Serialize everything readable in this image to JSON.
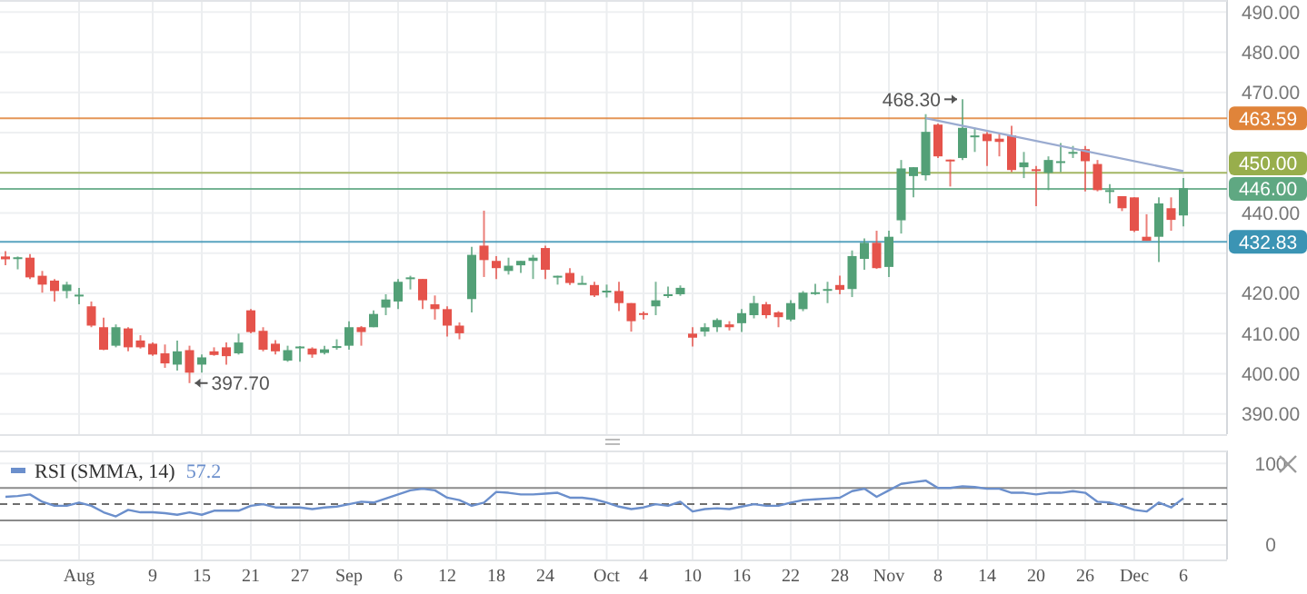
{
  "chart_data": [
    {
      "type": "candlestick",
      "categories": [
        null,
        null,
        null,
        null,
        null,
        null,
        "Aug",
        null,
        null,
        null,
        null,
        null,
        "9",
        null,
        null,
        null,
        "15",
        null,
        null,
        null,
        "21",
        null,
        null,
        null,
        "27",
        null,
        null,
        null,
        "Sep",
        null,
        null,
        null,
        "6",
        null,
        null,
        null,
        "12",
        null,
        null,
        null,
        "18",
        null,
        null,
        null,
        "24",
        null,
        null,
        null,
        null,
        "Oct",
        null,
        null,
        "4",
        null,
        null,
        null,
        "10",
        null,
        null,
        null,
        "16",
        null,
        null,
        null,
        "22",
        null,
        null,
        null,
        "28",
        null,
        null,
        null,
        "Nov",
        null,
        null,
        null,
        "8",
        null,
        null,
        null,
        "14",
        null,
        null,
        null,
        "20",
        null,
        null,
        null,
        "26",
        null,
        null,
        null,
        "Dec",
        null,
        null,
        null,
        "6"
      ],
      "ohlc": [
        [
          429.2,
          430.5,
          427,
          428.5
        ],
        [
          428.6,
          429.2,
          426,
          429
        ],
        [
          428.9,
          429.8,
          423.6,
          424
        ],
        [
          424.4,
          425.6,
          420.2,
          422.2
        ],
        [
          423.2,
          423.6,
          418,
          420.6
        ],
        [
          420.6,
          422.9,
          418.8,
          422.2
        ],
        [
          419.4,
          421.4,
          417.3,
          419.7
        ],
        [
          416.8,
          418,
          411.6,
          412
        ],
        [
          411.6,
          414,
          405.9,
          406
        ],
        [
          407,
          412.3,
          406.6,
          411.6
        ],
        [
          411.3,
          411.6,
          405.6,
          406.6
        ],
        [
          408.3,
          409.6,
          406.3,
          406.6
        ],
        [
          407.5,
          407.8,
          404.5,
          404.8
        ],
        [
          405.1,
          407.3,
          401.5,
          402.6
        ],
        [
          402.3,
          408.3,
          400.8,
          405.6
        ],
        [
          405.9,
          407,
          397.7,
          400.3
        ],
        [
          402.3,
          404.8,
          400.3,
          404.1
        ],
        [
          405.6,
          406.6,
          404.5,
          404.7
        ],
        [
          406.6,
          407.8,
          402.3,
          404.4
        ],
        [
          405.1,
          410,
          404.8,
          407.8
        ],
        [
          415.8,
          416.1,
          410.1,
          410.4
        ],
        [
          410.7,
          411.6,
          405.6,
          406
        ],
        [
          407.5,
          408.4,
          404.8,
          405.6
        ],
        [
          403.3,
          407,
          403,
          405.9
        ],
        [
          406.6,
          406.9,
          403,
          406.8
        ],
        [
          406.3,
          406.6,
          404,
          404.8
        ],
        [
          405.2,
          407,
          404.8,
          406.1
        ],
        [
          406.8,
          408.6,
          406,
          406.9
        ],
        [
          407,
          413.1,
          406,
          411.6
        ],
        [
          411.6,
          411.9,
          407,
          410.4
        ],
        [
          411.6,
          415.8,
          411.6,
          414.9
        ],
        [
          416.5,
          419.8,
          414.6,
          418.5
        ],
        [
          418,
          423.6,
          416.1,
          422.9
        ],
        [
          423.8,
          424.4,
          421,
          424
        ],
        [
          423.6,
          423.6,
          416.1,
          418.3
        ],
        [
          417.3,
          419.5,
          413.5,
          416.1
        ],
        [
          416.1,
          416.8,
          409.3,
          412
        ],
        [
          412,
          412.8,
          408.6,
          410.1
        ],
        [
          418.6,
          431.6,
          415.3,
          429.6
        ],
        [
          431.9,
          440.6,
          424.1,
          428.3
        ],
        [
          428.1,
          429.3,
          423.6,
          426.3
        ],
        [
          425.6,
          428.9,
          424.7,
          426.9
        ],
        [
          427,
          428.1,
          425.1,
          428.1
        ],
        [
          428.1,
          429.6,
          423.6,
          428.9
        ],
        [
          431.3,
          431.9,
          423.6,
          425.9
        ],
        [
          424.3,
          424.4,
          422.2,
          424.4
        ],
        [
          425.1,
          426.3,
          422.1,
          422.6
        ],
        [
          422.5,
          424.4,
          422.4,
          422.6
        ],
        [
          422.1,
          422.9,
          419.1,
          419.5
        ],
        [
          420.5,
          422.2,
          419,
          420.7
        ],
        [
          420.6,
          422.9,
          415.6,
          417.6
        ],
        [
          417.6,
          417.6,
          410.5,
          413.1
        ],
        [
          415.1,
          415.5,
          413.5,
          414.9
        ],
        [
          416.8,
          422.9,
          414.6,
          418.3
        ],
        [
          419.6,
          421.7,
          418.9,
          419.8
        ],
        [
          419.8,
          422,
          419.4,
          421.4
        ],
        [
          410,
          411.6,
          406.8,
          409
        ],
        [
          410.5,
          412.6,
          409.3,
          411.6
        ],
        [
          411.6,
          413.8,
          410.4,
          413.4
        ],
        [
          412.3,
          413.1,
          410.8,
          411.6
        ],
        [
          412.6,
          416.1,
          410.4,
          415.1
        ],
        [
          414.6,
          419.4,
          413.8,
          417.6
        ],
        [
          417.3,
          417.9,
          413.8,
          414.6
        ],
        [
          415.3,
          415.6,
          411.6,
          414.1
        ],
        [
          413.5,
          418.3,
          413.1,
          417.6
        ],
        [
          416.1,
          420.6,
          415.6,
          420.2
        ],
        [
          420.2,
          422.4,
          419.6,
          420.3
        ],
        [
          421,
          422.9,
          417.6,
          421.1
        ],
        [
          422.1,
          424.4,
          419.8,
          420.9
        ],
        [
          421.1,
          430.7,
          419.1,
          429.3
        ],
        [
          428.6,
          433.7,
          425.9,
          432.6
        ],
        [
          432.6,
          435.6,
          426.1,
          426.3
        ],
        [
          426.6,
          435.6,
          424.1,
          434.1
        ],
        [
          438.2,
          453.2,
          434.9,
          451.1
        ],
        [
          449.2,
          451.4,
          443.9,
          451.4
        ],
        [
          449.4,
          464.6,
          448.1,
          460.2
        ],
        [
          462,
          462.3,
          453.7,
          454.1
        ],
        [
          453.3,
          453.3,
          446.6,
          453.2
        ],
        [
          453.7,
          468.3,
          453.2,
          461.2
        ],
        [
          459.1,
          461.2,
          455.2,
          459.3
        ],
        [
          459.7,
          460.2,
          451.7,
          457.9
        ],
        [
          458.5,
          459.7,
          454.1,
          457.7
        ],
        [
          459.3,
          461.7,
          450.2,
          450.7
        ],
        [
          451.4,
          455.2,
          448.7,
          452.6
        ],
        [
          450.9,
          451.7,
          441.7,
          450.8
        ],
        [
          450,
          454.1,
          445.7,
          453.2
        ],
        [
          452.8,
          457.4,
          450.2,
          452.9
        ],
        [
          455.1,
          456.7,
          453.7,
          455.2
        ],
        [
          455.9,
          456.7,
          445.4,
          452.9
        ],
        [
          452.2,
          453.2,
          445.4,
          445.7
        ],
        [
          445.6,
          447.2,
          442.4,
          445.7
        ],
        [
          444.2,
          444.2,
          440.5,
          441.2
        ],
        [
          443.9,
          443.9,
          435.3,
          435.6
        ],
        [
          434.1,
          439.7,
          433.1,
          433.1
        ],
        [
          434.1,
          443.9,
          427.8,
          442.4
        ],
        [
          441.2,
          443.9,
          435.6,
          438.3
        ],
        [
          439.4,
          448.7,
          436.7,
          446.2
        ]
      ],
      "series": [
        {
          "type": "line",
          "color": "#9aabd0",
          "values": [
            null,
            null,
            null,
            null,
            null,
            null,
            null,
            null,
            null,
            null,
            null,
            null,
            null,
            null,
            null,
            null,
            null,
            null,
            null,
            null,
            null,
            null,
            null,
            null,
            null,
            null,
            null,
            null,
            null,
            null,
            null,
            null,
            null,
            null,
            null,
            null,
            null,
            null,
            null,
            null,
            null,
            null,
            null,
            null,
            null,
            null,
            null,
            null,
            null,
            null,
            null,
            null,
            null,
            null,
            null,
            null,
            null,
            null,
            null,
            null,
            null,
            null,
            null,
            null,
            null,
            null,
            null,
            null,
            null,
            null,
            null,
            null,
            null,
            null,
            null,
            463.6,
            null,
            null,
            null,
            null,
            null,
            null,
            null,
            null,
            null,
            null,
            null,
            null,
            null,
            null,
            null,
            null,
            null,
            null,
            null,
            null,
            450.4
          ]
        }
      ],
      "ylim": [
        385,
        493
      ],
      "yticks": [
        {
          "value": 390,
          "label": "390.00"
        },
        {
          "value": 400,
          "label": "400.00"
        },
        {
          "value": 410,
          "label": "410.00"
        },
        {
          "value": 420,
          "label": "420.00"
        },
        {
          "value": 430,
          "label": null
        },
        {
          "value": 440,
          "label": "440.00"
        },
        {
          "value": 450,
          "label": null
        },
        {
          "value": 460,
          "label": null
        },
        {
          "value": 470,
          "label": "470.00"
        },
        {
          "value": 480,
          "label": "480.00"
        },
        {
          "value": 490,
          "label": "490.00"
        }
      ],
      "ref_lines": [
        {
          "axis": "y",
          "value": 463.59,
          "label": "463.59",
          "color": "#e0843a"
        },
        {
          "axis": "y",
          "value": 450,
          "label": "450.00",
          "color": "#98ae4c"
        },
        {
          "axis": "y",
          "value": 446,
          "label": "446.00",
          "color": "#5fa882"
        },
        {
          "axis": "y",
          "value": 432.83,
          "label": "432.83",
          "color": "#3b94b4"
        }
      ],
      "annotations": [
        "468.30",
        "397.70"
      ],
      "grid": true
    },
    {
      "type": "line",
      "categories": [
        null,
        null,
        null,
        null,
        null,
        null,
        null,
        null,
        null,
        null,
        null,
        null,
        null,
        null,
        null,
        null,
        null,
        null,
        null,
        null,
        null,
        null,
        null,
        null,
        null,
        null,
        null,
        null,
        null,
        null,
        null,
        null,
        null,
        null,
        null,
        null,
        null,
        null,
        null,
        null,
        null,
        null,
        null,
        null,
        null,
        null,
        null,
        null,
        null,
        null,
        null,
        null,
        null,
        null,
        null,
        null,
        null,
        null,
        null,
        null,
        null,
        null,
        null,
        null,
        null,
        null,
        null,
        null,
        null,
        null,
        null,
        null,
        null,
        null,
        null,
        null,
        null,
        null,
        null,
        null,
        null,
        null,
        null,
        null,
        null,
        null,
        null,
        null,
        null,
        null,
        null,
        null,
        null,
        null,
        null,
        null,
        null
      ],
      "series": [
        {
          "name": "RSI (SMMA, 14)",
          "color": "#6b8fcc",
          "values": [
            59,
            60,
            62,
            53,
            48,
            48,
            52,
            48,
            40,
            35,
            43,
            40,
            40,
            39,
            37,
            40,
            37,
            42,
            42,
            42,
            48,
            50,
            46,
            46,
            46,
            44,
            46,
            47,
            50,
            53,
            52,
            57,
            62,
            67,
            69,
            67,
            58,
            55,
            48,
            52,
            65,
            64,
            62,
            62,
            63,
            64,
            58,
            58,
            56,
            52,
            47,
            44,
            46,
            50,
            48,
            53,
            41,
            44,
            45,
            44,
            47,
            50,
            48,
            48,
            52,
            55,
            56,
            57,
            58,
            66,
            69,
            59,
            67,
            75,
            77,
            79,
            70,
            70,
            72,
            71,
            69,
            69,
            64,
            64,
            62,
            64,
            64,
            66,
            64,
            53,
            52,
            48,
            43,
            41,
            52,
            46,
            57.2
          ]
        }
      ],
      "ylim": [
        -18,
        116
      ],
      "yticks": [
        0,
        100
      ],
      "ref_lines": [
        {
          "axis": "y",
          "value": 70,
          "color": "#777777"
        },
        {
          "axis": "y",
          "value": 50,
          "color": "#555555",
          "line_style": "dashed"
        },
        {
          "axis": "y",
          "value": 30,
          "color": "#777777"
        }
      ],
      "annotations": [
        "57.2"
      ],
      "grid": "y",
      "tick_labels": "y",
      "legend": "top left"
    }
  ]
}
